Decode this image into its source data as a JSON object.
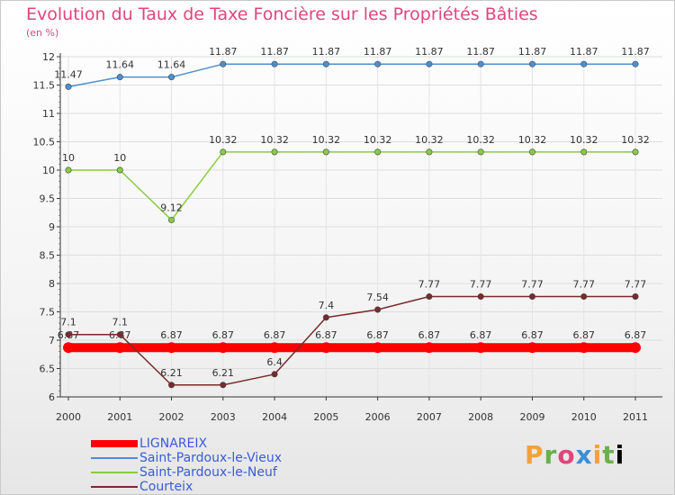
{
  "chart_data": {
    "type": "line",
    "title": "Evolution du Taux de Taxe Foncière sur les Propriétés Bâties",
    "unit_label": "(en %)",
    "x": [
      "2000",
      "2001",
      "2002",
      "2003",
      "2004",
      "2005",
      "2006",
      "2007",
      "2008",
      "2009",
      "2010",
      "2011"
    ],
    "ylim": [
      6,
      12
    ],
    "yticks": [
      "6",
      "6.5",
      "7",
      "7.5",
      "8",
      "8.5",
      "9",
      "9.5",
      "10",
      "10.5",
      "11",
      "11.5",
      "12"
    ],
    "series": [
      {
        "name": "LIGNAREIX",
        "color": "#ff0000",
        "values": [
          6.87,
          6.87,
          6.87,
          6.87,
          6.87,
          6.87,
          6.87,
          6.87,
          6.87,
          6.87,
          6.87,
          6.87
        ],
        "labels": [
          "6.87",
          "6.87",
          "6.87",
          "6.87",
          "6.87",
          "6.87",
          "6.87",
          "6.87",
          "6.87",
          "6.87",
          "6.87",
          "6.87"
        ]
      },
      {
        "name": "Saint-Pardoux-le-Vieux",
        "color": "#4a90d0",
        "values": [
          11.47,
          11.64,
          11.64,
          11.87,
          11.87,
          11.87,
          11.87,
          11.87,
          11.87,
          11.87,
          11.87,
          11.87
        ],
        "labels": [
          "11.47",
          "11.64",
          "11.64",
          "11.87",
          "11.87",
          "11.87",
          "11.87",
          "11.87",
          "11.87",
          "11.87",
          "11.87",
          "11.87"
        ]
      },
      {
        "name": "Saint-Pardoux-le-Neuf",
        "color": "#88cc44",
        "values": [
          10,
          10,
          9.12,
          10.32,
          10.32,
          10.32,
          10.32,
          10.32,
          10.32,
          10.32,
          10.32,
          10.32
        ],
        "labels": [
          "10",
          "10",
          "9.12",
          "10.32",
          "10.32",
          "10.32",
          "10.32",
          "10.32",
          "10.32",
          "10.32",
          "10.32",
          "10.32"
        ]
      },
      {
        "name": "Courteix",
        "color": "#7a2a2a",
        "values": [
          7.1,
          7.1,
          6.21,
          6.21,
          6.4,
          7.4,
          7.54,
          7.77,
          7.77,
          7.77,
          7.77,
          7.77
        ],
        "labels": [
          "7.1",
          "7.1",
          "6.21",
          "6.21",
          "6.4",
          "7.4",
          "7.54",
          "7.77",
          "7.77",
          "7.77",
          "7.77",
          "7.77"
        ]
      }
    ]
  },
  "logo": {
    "letters": [
      "P",
      "r",
      "o",
      "x",
      "i",
      "t",
      "i"
    ]
  }
}
